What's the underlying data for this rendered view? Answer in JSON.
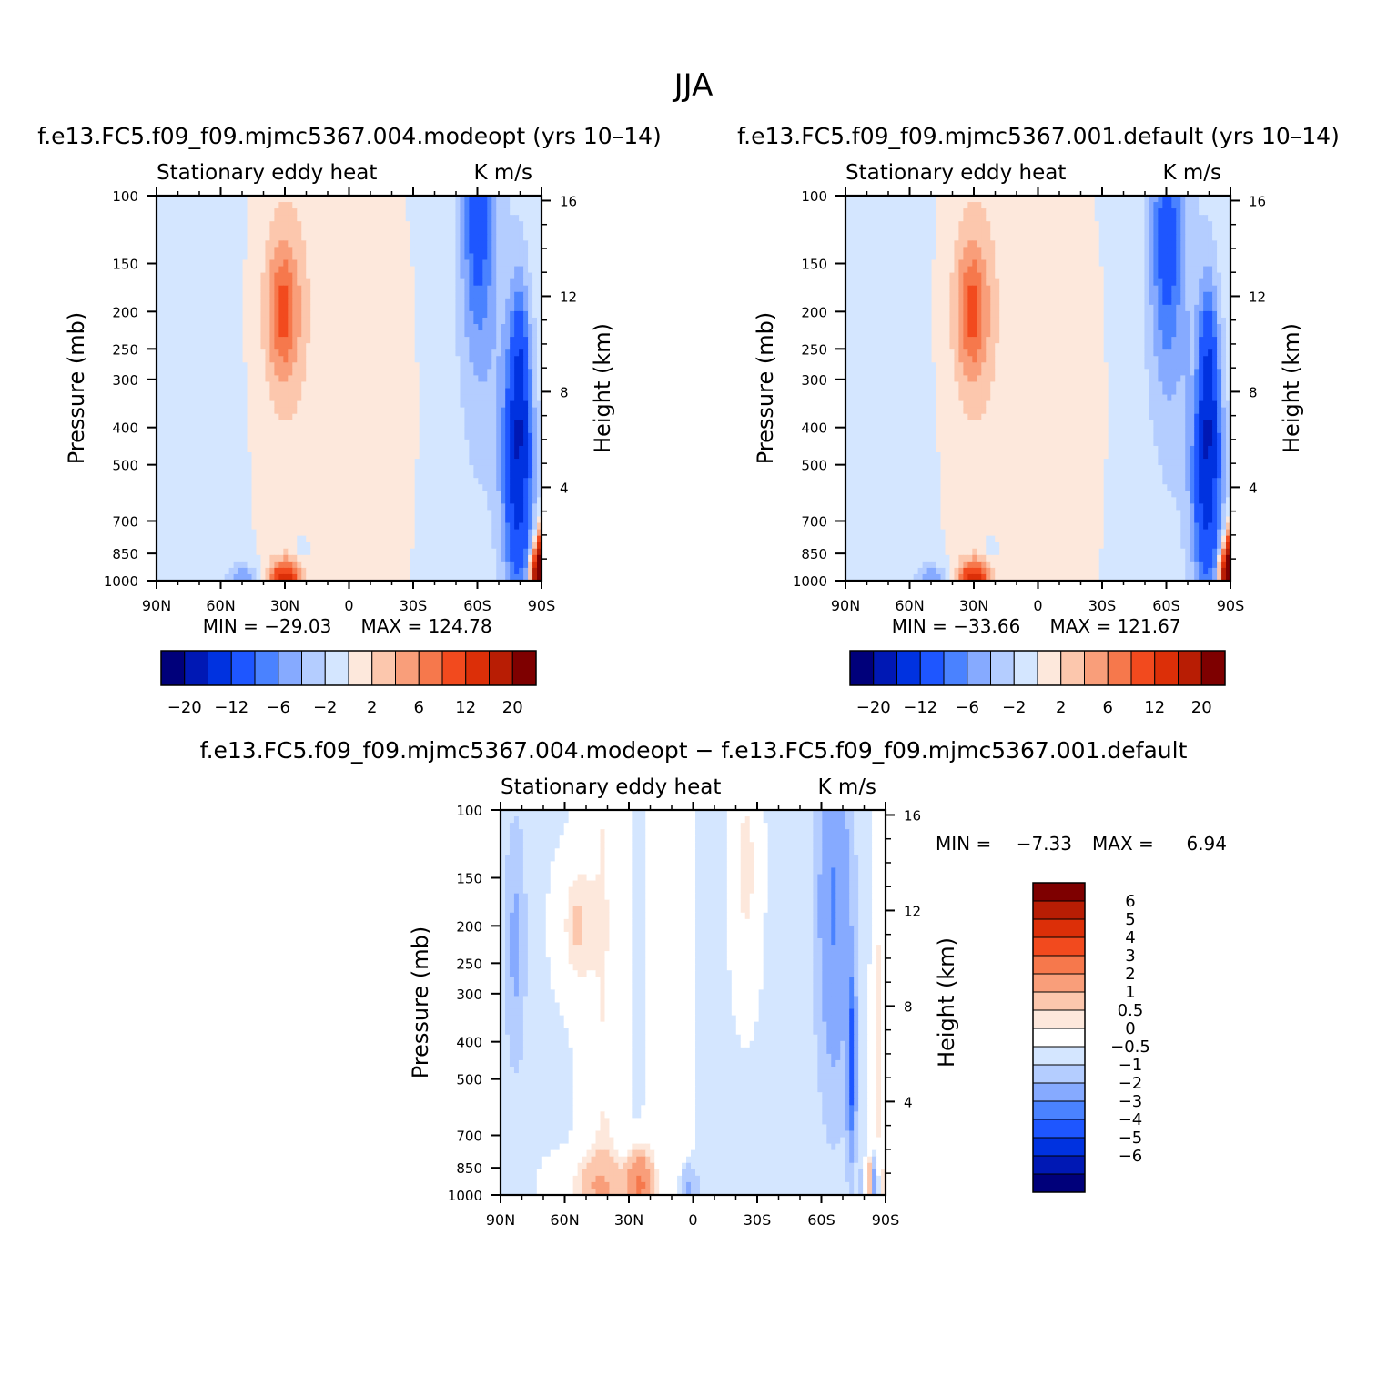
{
  "figure": {
    "title": "JJA"
  },
  "chart_data": [
    {
      "type": "heatmap",
      "title": "f.e13.FC5.f09_f09.mjmc5367.004.modeopt (yrs 10–14)",
      "subtitle_left": "Stationary eddy heat",
      "subtitle_right": "K m/s",
      "xlabel": "",
      "ylabel": "Pressure (mb)",
      "ylabel_right": "Height (km)",
      "x_ticks": [
        "90N",
        "60N",
        "30N",
        "0",
        "30S",
        "60S",
        "90S"
      ],
      "y_ticks": [
        "100",
        "150",
        "200",
        "250",
        "300",
        "400",
        "500",
        "700",
        "850",
        "1000"
      ],
      "y_ticks_right": [
        "16",
        "12",
        "8",
        "4"
      ],
      "ylim": [
        1000,
        100
      ],
      "min_label": "MIN = −29.03",
      "max_label": "MAX = 124.78",
      "min": -29.03,
      "max": 124.78,
      "colorbar_labels": [
        "−20",
        "−12",
        "−6",
        "−2",
        "2",
        "6",
        "12",
        "20"
      ],
      "features": [
        {
          "lat": 30,
          "p": 150,
          "value": 6
        },
        {
          "lat": 30,
          "p": 1000,
          "value": 12
        },
        {
          "lat": -75,
          "p": 600,
          "value": -12
        },
        {
          "lat": -60,
          "p": 150,
          "value": -6
        },
        {
          "lat": -88,
          "p": 950,
          "value": 20
        }
      ]
    },
    {
      "type": "heatmap",
      "title": "f.e13.FC5.f09_f09.mjmc5367.001.default (yrs 10–14)",
      "subtitle_left": "Stationary eddy heat",
      "subtitle_right": "K m/s",
      "xlabel": "",
      "ylabel": "Pressure (mb)",
      "ylabel_right": "Height (km)",
      "x_ticks": [
        "90N",
        "60N",
        "30N",
        "0",
        "30S",
        "60S",
        "90S"
      ],
      "y_ticks": [
        "100",
        "150",
        "200",
        "250",
        "300",
        "400",
        "500",
        "700",
        "850",
        "1000"
      ],
      "y_ticks_right": [
        "16",
        "12",
        "8",
        "4"
      ],
      "ylim": [
        1000,
        100
      ],
      "min_label": "MIN = −33.66",
      "max_label": "MAX = 121.67",
      "min": -33.66,
      "max": 121.67,
      "colorbar_labels": [
        "−20",
        "−12",
        "−6",
        "−2",
        "2",
        "6",
        "12",
        "20"
      ],
      "features": [
        {
          "lat": 30,
          "p": 150,
          "value": 6
        },
        {
          "lat": 30,
          "p": 1000,
          "value": 12
        },
        {
          "lat": -75,
          "p": 600,
          "value": -12
        },
        {
          "lat": -60,
          "p": 120,
          "value": -6
        },
        {
          "lat": -88,
          "p": 950,
          "value": 20
        }
      ]
    },
    {
      "type": "heatmap",
      "title": "f.e13.FC5.f09_f09.mjmc5367.004.modeopt − f.e13.FC5.f09_f09.mjmc5367.001.default",
      "subtitle_left": "Stationary eddy heat",
      "subtitle_right": "K m/s",
      "xlabel": "",
      "ylabel": "Pressure (mb)",
      "ylabel_right": "Height (km)",
      "x_ticks": [
        "90N",
        "60N",
        "30N",
        "0",
        "30S",
        "60S",
        "90S"
      ],
      "y_ticks": [
        "100",
        "150",
        "200",
        "250",
        "300",
        "400",
        "500",
        "700",
        "850",
        "1000"
      ],
      "y_ticks_right": [
        "16",
        "12",
        "8",
        "4"
      ],
      "ylim": [
        1000,
        100
      ],
      "min_label": "MIN =",
      "min_value": "−7.33",
      "max_label": "MAX =",
      "max_value": "6.94",
      "min": -7.33,
      "max": 6.94,
      "colorbar_labels": [
        "6",
        "5",
        "4",
        "3",
        "2",
        "1",
        "0.5",
        "0",
        "−0.5",
        "−1",
        "−2",
        "−3",
        "−4",
        "−5",
        "−6"
      ],
      "features": [
        {
          "lat": -70,
          "p": 400,
          "value": -4
        },
        {
          "lat": -65,
          "p": 200,
          "value": -2
        },
        {
          "lat": 25,
          "p": 950,
          "value": 2
        },
        {
          "lat": 55,
          "p": 180,
          "value": 1
        },
        {
          "lat": -30,
          "p": 120,
          "value": 1
        }
      ]
    }
  ],
  "colors": {
    "palette": [
      "#00007a",
      "#0018b4",
      "#0032e0",
      "#1e56ff",
      "#4a82ff",
      "#86aaff",
      "#b4cdff",
      "#d4e6ff",
      "#fde8dc",
      "#fcc7ad",
      "#f99e7a",
      "#f6784c",
      "#f24a1e",
      "#dc2f08",
      "#b81d04",
      "#7e0000"
    ],
    "palette_diff": [
      "#00007a",
      "#0018b4",
      "#0032e0",
      "#1e56ff",
      "#4a82ff",
      "#86aaff",
      "#b4cdff",
      "#d4e6ff",
      "#ffffff",
      "#fde8dc",
      "#fcc7ad",
      "#f99e7a",
      "#f6784c",
      "#f24a1e",
      "#dc2f08",
      "#b81d04",
      "#7e0000"
    ]
  }
}
